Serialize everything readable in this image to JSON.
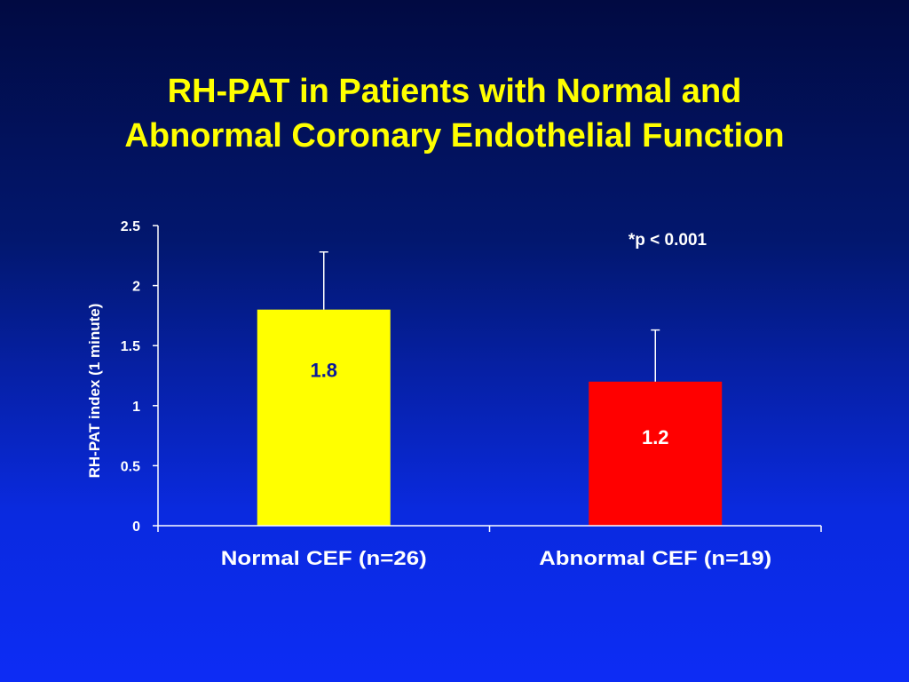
{
  "slide": {
    "title_line1": "RH-PAT in Patients with Normal and",
    "title_line2": "Abnormal Coronary Endothelial Function"
  },
  "colors": {
    "title": "#ffff00",
    "text": "#ffffff",
    "axis": "#ffffff",
    "data_label_dark": "#0a1a9c"
  },
  "chart_data": {
    "type": "bar",
    "title": "",
    "xlabel": "",
    "ylabel": "RH-PAT  index  (1 minute)",
    "ylim": [
      0,
      2.5
    ],
    "yticks": [
      0,
      0.5,
      1,
      1.5,
      2,
      2.5
    ],
    "ytick_labels": [
      "0",
      "0.5",
      "1",
      "1.5",
      "2",
      "2.5"
    ],
    "grid": false,
    "categories": [
      "Normal CEF (n=26)",
      "Abnormal CEF (n=19)"
    ],
    "values": [
      1.8,
      1.2
    ],
    "value_labels": [
      "1.8",
      "1.2"
    ],
    "error_upper": [
      2.28,
      1.63
    ],
    "bar_colors": [
      "#ffff00",
      "#ff0000"
    ],
    "annotation": "*p < 0.001"
  }
}
